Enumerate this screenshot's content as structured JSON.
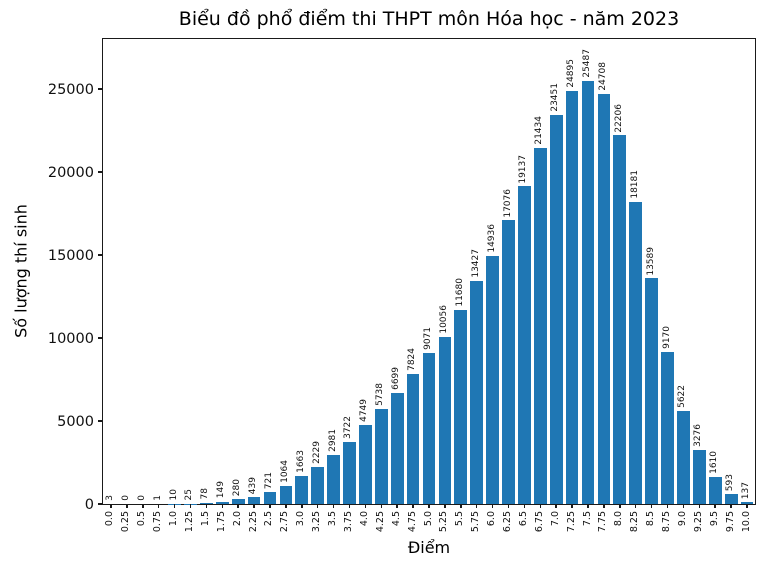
{
  "title": "Biểu đồ phổ điểm thi THPT môn Hóa học - năm 2023",
  "chart_data": {
    "type": "bar",
    "title": "Biểu đồ phổ điểm thi THPT môn Hóa học - năm 2023",
    "xlabel": "Điểm",
    "ylabel": "Số lượng thí sinh",
    "bar_color": "#1f77b4",
    "grid": false,
    "legend": "none",
    "value_labels_rotation": 90,
    "categories": [
      "0.0",
      "0.25",
      "0.5",
      "0.75",
      "1.0",
      "1.25",
      "1.5",
      "1.75",
      "2.0",
      "2.25",
      "2.5",
      "2.75",
      "3.0",
      "3.25",
      "3.5",
      "3.75",
      "4.0",
      "4.25",
      "4.5",
      "4.75",
      "5.0",
      "5.25",
      "5.5",
      "5.75",
      "6.0",
      "6.25",
      "6.5",
      "6.75",
      "7.0",
      "7.25",
      "7.5",
      "7.75",
      "8.0",
      "8.25",
      "8.5",
      "8.75",
      "9.0",
      "9.25",
      "9.5",
      "9.75",
      "10.0"
    ],
    "values": [
      3,
      0,
      0,
      1,
      10,
      25,
      78,
      149,
      280,
      439,
      721,
      1064,
      1663,
      2229,
      2981,
      3722,
      4749,
      5738,
      6699,
      7824,
      9071,
      10056,
      11680,
      13427,
      14936,
      17076,
      19137,
      21434,
      23451,
      24895,
      25487,
      24708,
      22206,
      18181,
      13589,
      9170,
      5622,
      3276,
      1610,
      593,
      137
    ],
    "yticks": [
      0,
      5000,
      10000,
      15000,
      20000,
      25000
    ],
    "ylim": [
      0,
      28000
    ]
  }
}
